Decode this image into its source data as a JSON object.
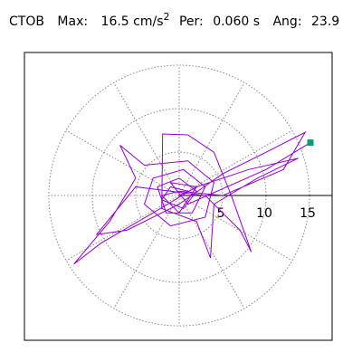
{
  "chart_data": {
    "type": "polar",
    "title": {
      "station": "CTOB",
      "max_label": "Max:",
      "max_value": "16.5 cm/s",
      "max_exponent": "2",
      "per_label": "Per:",
      "per_value": "0.060 s",
      "ang_label": "Ang:",
      "ang_value": "23.9"
    },
    "xlim": [
      -17.8,
      17.6
    ],
    "ylim": [
      -16.7,
      16.5
    ],
    "rticks": [
      5,
      10,
      15
    ],
    "angles": [
      0,
      30,
      60,
      90,
      120,
      150,
      180,
      210,
      240,
      270,
      300,
      330
    ],
    "grid_color": "#888888",
    "end_marker_color": "#009e73",
    "series": [
      {
        "color": "#9400d3",
        "x": [
          0,
          1,
          -1,
          -2,
          0.5,
          2,
          0,
          -2.5,
          -1.5,
          1.5,
          3,
          0.5,
          -3,
          -4,
          -1,
          3,
          4,
          1,
          -4,
          -6.8,
          -5,
          -8,
          -12.1,
          -9,
          -3,
          2,
          8,
          13.7,
          9,
          4,
          3.6,
          2,
          -2,
          -1.9,
          1,
          4,
          6,
          8.3,
          7,
          3,
          -5,
          -9.5,
          -6,
          0,
          5,
          10,
          14.5,
          12,
          5,
          0,
          -2,
          0,
          2,
          -1,
          1,
          10,
          15.1
        ],
        "y": [
          0,
          0.5,
          1,
          -0.5,
          -1.5,
          0.5,
          2,
          1,
          -2,
          -2,
          1,
          3,
          2,
          -1,
          -3.5,
          -2.5,
          1.5,
          4,
          3.5,
          5.8,
          2,
          -3,
          -7.9,
          -5.5,
          -2,
          1,
          3,
          4.3,
          2,
          -1,
          -7.2,
          -3,
          -1.5,
          7.1,
          7,
          5,
          0,
          -6.5,
          -4,
          0,
          1,
          -4.5,
          -4,
          -1,
          2.5,
          5,
          7.3,
          3,
          0,
          0.5,
          0,
          -2,
          1,
          1.5,
          -1,
          3,
          6.1
        ]
      }
    ]
  }
}
